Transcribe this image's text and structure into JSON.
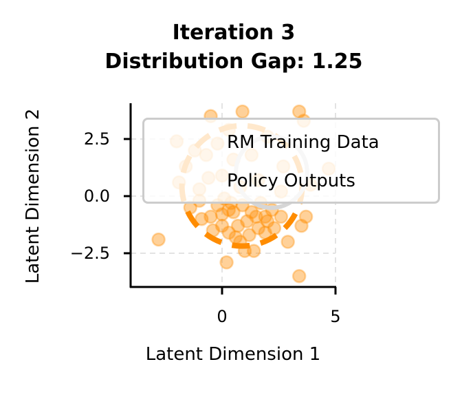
{
  "chart_data": {
    "type": "scatter",
    "title": "Iteration 3\nDistribution Gap: 1.25",
    "title_lines": [
      "Iteration 3",
      "Distribution Gap: 1.25"
    ],
    "xlabel": "Latent Dimension 1",
    "ylabel": "Latent Dimension 2",
    "xlim": [
      -4.0,
      5.0
    ],
    "ylim": [
      -4.0,
      4.0
    ],
    "xticks": [
      0,
      5
    ],
    "xtick_labels": [
      "0",
      "5"
    ],
    "yticks": [
      2.5,
      0.0,
      -2.5
    ],
    "ytick_labels": [
      "2.5",
      "0.0",
      "−2.5"
    ],
    "grid": true,
    "legend_position": "upper right",
    "legend": [
      "RM Training Data",
      "Policy Outputs"
    ],
    "series": [
      {
        "name": "Policy Outputs",
        "color": "#ff8c00",
        "alpha": 0.4,
        "points": [
          [
            -2.0,
            2.4
          ],
          [
            -2.8,
            -1.9
          ],
          [
            -0.9,
            -1.0
          ],
          [
            -0.5,
            -0.9
          ],
          [
            0.2,
            -2.9
          ],
          [
            3.4,
            -3.5
          ],
          [
            2.9,
            -2.0
          ],
          [
            2.3,
            -1.4
          ],
          [
            1.0,
            -2.4
          ],
          [
            1.4,
            -2.4
          ],
          [
            1.9,
            -1.6
          ],
          [
            1.6,
            -1.4
          ],
          [
            0.5,
            -0.7
          ],
          [
            0.0,
            -0.8
          ],
          [
            -0.4,
            -1.5
          ],
          [
            0.7,
            -1.3
          ],
          [
            1.1,
            -1.1
          ],
          [
            1.3,
            -0.7
          ],
          [
            0.9,
            -0.4
          ],
          [
            0.4,
            -0.3
          ],
          [
            0.1,
            -0.1
          ],
          [
            1.7,
            -0.3
          ],
          [
            2.2,
            -0.6
          ],
          [
            2.6,
            -0.9
          ],
          [
            3.5,
            -1.3
          ],
          [
            3.7,
            -0.9
          ],
          [
            1.9,
            -0.9
          ],
          [
            0.6,
            -1.8
          ],
          [
            0.3,
            -1.6
          ],
          [
            1.2,
            -1.7
          ],
          [
            0.8,
            -2.0
          ],
          [
            0.0,
            -1.3
          ],
          [
            2.0,
            -1.1
          ],
          [
            1.5,
            -0.9
          ],
          [
            0.3,
            -0.6
          ],
          [
            -0.2,
            -0.4
          ],
          [
            -1.4,
            -0.5
          ],
          [
            -1.0,
            -0.2
          ],
          [
            -0.5,
            3.5
          ],
          [
            0.9,
            3.7
          ],
          [
            3.4,
            3.7
          ],
          [
            3.6,
            3.3
          ],
          [
            4.7,
            1.2
          ],
          [
            3.9,
            0.5
          ],
          [
            2.6,
            0.2
          ],
          [
            -1.9,
            0.6
          ],
          [
            -1.6,
            1.3
          ],
          [
            -0.7,
            1.8
          ],
          [
            -0.2,
            2.3
          ],
          [
            0.5,
            1.6
          ],
          [
            1.3,
            1.8
          ],
          [
            0.0,
            0.9
          ],
          [
            -1.0,
            0.3
          ],
          [
            0.8,
            0.4
          ],
          [
            2.0,
            2.6
          ],
          [
            2.7,
            1.3
          ],
          [
            -1.2,
            2.0
          ],
          [
            0.3,
            2.9
          ],
          [
            -0.6,
            0.8
          ],
          [
            1.6,
            0.7
          ]
        ]
      },
      {
        "name": "RM Training Data",
        "color": "#b0b0b0",
        "points": []
      }
    ],
    "annotations": [
      {
        "type": "circle",
        "style": "dashed",
        "color": "#ff8c00",
        "center": [
          0.88,
          0.45
        ],
        "radius": 2.65,
        "label": "Policy Outputs region"
      },
      {
        "type": "circle",
        "style": "solid",
        "color": "#d6d6d6",
        "center": [
          2.18,
          1.05
        ],
        "radius": 1.57,
        "label": "RM Training Data region"
      }
    ]
  },
  "labels": {
    "title_line1": "Iteration 3",
    "title_line2": "Distribution Gap: 1.25",
    "xlabel": "Latent Dimension 1",
    "ylabel": "Latent Dimension 2",
    "ytick_top": "2.5",
    "ytick_mid": "0.0",
    "ytick_bot": "−2.5",
    "xtick_0": "0",
    "xtick_5": "5",
    "legend_rm": "RM Training Data",
    "legend_policy": "Policy Outputs"
  }
}
